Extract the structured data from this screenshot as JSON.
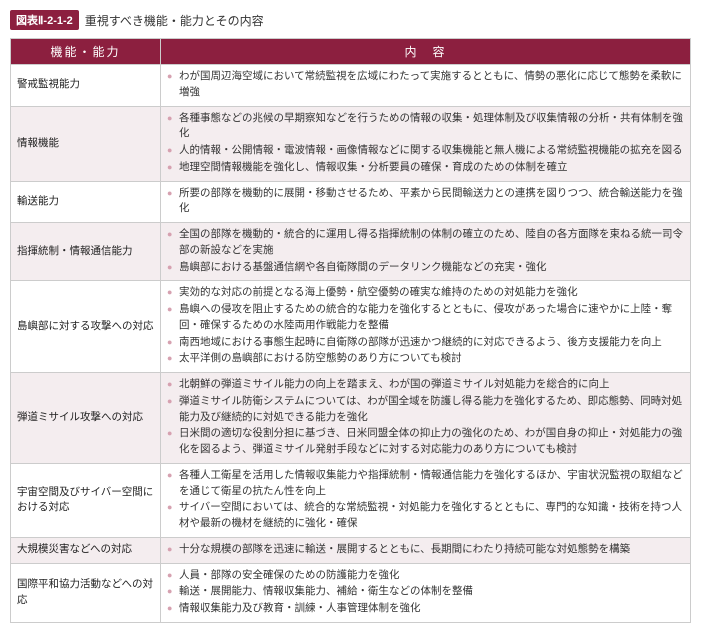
{
  "figure": {
    "number": "図表Ⅱ-2-1-2",
    "title": "重視すべき機能・能力とその内容"
  },
  "table": {
    "headers": {
      "func": "機能・能力",
      "content": "内　容"
    },
    "rows": [
      {
        "func": "警戒監視能力",
        "bullets": [
          "わが国周辺海空域において常続監視を広域にわたって実施するとともに、情勢の悪化に応じて態勢を柔軟に増強"
        ]
      },
      {
        "func": "情報機能",
        "bullets": [
          "各種事態などの兆候の早期察知などを行うための情報の収集・処理体制及び収集情報の分析・共有体制を強化",
          "人的情報・公開情報・電波情報・画像情報などに関する収集機能と無人機による常続監視機能の拡充を図る",
          "地理空間情報機能を強化し、情報収集・分析要員の確保・育成のための体制を確立"
        ]
      },
      {
        "func": "輸送能力",
        "bullets": [
          "所要の部隊を機動的に展開・移動させるため、平素から民間輸送力との連携を図りつつ、統合輸送能力を強化"
        ]
      },
      {
        "func": "指揮統制・情報通信能力",
        "bullets": [
          "全国の部隊を機動的・統合的に運用し得る指揮統制の体制の確立のため、陸自の各方面隊を束ねる統一司令部の新設などを実施",
          "島嶼部における基盤通信網や各自衛隊間のデータリンク機能などの充実・強化"
        ]
      },
      {
        "func": "島嶼部に対する攻撃への対応",
        "bullets": [
          "実効的な対応の前提となる海上優勢・航空優勢の確実な維持のための対処能力を強化",
          "島嶼への侵攻を阻止するための統合的な能力を強化するとともに、侵攻があった場合に速やかに上陸・奪回・確保するための水陸両用作戦能力を整備",
          "南西地域における事態生起時に自衛隊の部隊が迅速かつ継続的に対応できるよう、後方支援能力を向上",
          "太平洋側の島嶼部における防空態勢のあり方についても検討"
        ]
      },
      {
        "func": "弾道ミサイル攻撃への対応",
        "bullets": [
          "北朝鮮の弾道ミサイル能力の向上を踏まえ、わが国の弾道ミサイル対処能力を総合的に向上",
          "弾道ミサイル防衛システムについては、わが国全域を防護し得る能力を強化するため、即応態勢、同時対処能力及び継続的に対処できる能力を強化",
          "日米間の適切な役割分担に基づき、日米同盟全体の抑止力の強化のため、わが国自身の抑止・対処能力の強化を図るよう、弾道ミサイル発射手段などに対する対応能力のあり方についても検討"
        ]
      },
      {
        "func": "宇宙空間及びサイバー空間における対応",
        "bullets": [
          "各種人工衛星を活用した情報収集能力や指揮統制・情報通信能力を強化するほか、宇宙状況監視の取組などを通じて衛星の抗たん性を向上",
          "サイバー空間においては、統合的な常続監視・対処能力を強化するとともに、専門的な知識・技術を持つ人材や最新の機材を継続的に強化・確保"
        ]
      },
      {
        "func": "大規模災害などへの対応",
        "bullets": [
          "十分な規模の部隊を迅速に輸送・展開するとともに、長期間にわたり持続可能な対処態勢を構築"
        ]
      },
      {
        "func": "国際平和協力活動などへの対応",
        "bullets": [
          "人員・部隊の安全確保のための防護能力を強化",
          "輸送・展開能力、情報収集能力、補給・衛生などの体制を整備",
          "情報収集能力及び教育・訓練・人事管理体制を強化"
        ]
      }
    ]
  }
}
